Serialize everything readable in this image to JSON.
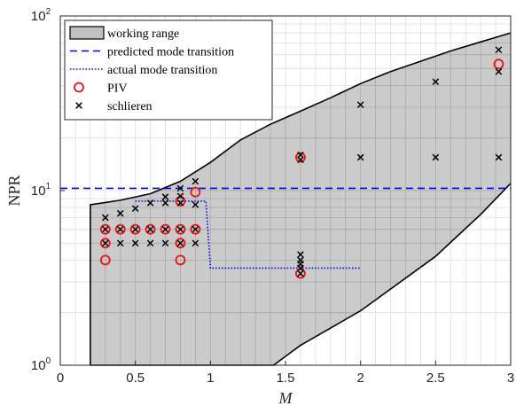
{
  "chart_data": {
    "type": "scatter",
    "xlabel": "M",
    "ylabel": "NPR",
    "xlim": [
      0,
      3
    ],
    "ylim": [
      1,
      100
    ],
    "yscale": "log",
    "grid": "major and minor",
    "legend_position": "top-left",
    "x_ticks": [
      "0",
      "0.5",
      "1",
      "1.5",
      "2",
      "2.5",
      "3"
    ],
    "y_ticks": [
      {
        "base": "10",
        "exp": "0"
      },
      {
        "base": "10",
        "exp": "1"
      },
      {
        "base": "10",
        "exp": "2"
      }
    ],
    "legend": [
      {
        "key": "working_range",
        "label": "working range"
      },
      {
        "key": "predicted",
        "label": "predicted mode transition"
      },
      {
        "key": "actual",
        "label": "actual mode transition"
      },
      {
        "key": "piv",
        "label": "PIV"
      },
      {
        "key": "schlieren",
        "label": "schlieren"
      }
    ],
    "series": [
      {
        "key": "working_range",
        "style": "filled-region",
        "fill": "#c0c0c0",
        "upper": [
          [
            0.2,
            8.3
          ],
          [
            0.4,
            8.8
          ],
          [
            0.6,
            9.6
          ],
          [
            0.8,
            11.3
          ],
          [
            1.0,
            14.5
          ],
          [
            1.2,
            19.5
          ],
          [
            1.4,
            24
          ],
          [
            1.6,
            28.5
          ],
          [
            1.8,
            34
          ],
          [
            2.0,
            41
          ],
          [
            2.2,
            48
          ],
          [
            2.4,
            55
          ],
          [
            2.6,
            63
          ],
          [
            2.8,
            71
          ],
          [
            3.0,
            80
          ]
        ],
        "lower": [
          [
            0.2,
            1.0
          ],
          [
            1.42,
            1.0
          ],
          [
            1.6,
            1.3
          ],
          [
            2.0,
            2.05
          ],
          [
            2.5,
            4.2
          ],
          [
            2.8,
            7.3
          ],
          [
            3.0,
            11.0
          ]
        ]
      },
      {
        "key": "predicted",
        "style": "dashed",
        "color": "#0000ee",
        "points": [
          [
            0,
            10.3
          ],
          [
            3,
            10.3
          ]
        ]
      },
      {
        "key": "actual",
        "style": "dotted",
        "color": "#0000ee",
        "points": [
          [
            0.5,
            8.7
          ],
          [
            0.97,
            8.7
          ],
          [
            1.0,
            3.6
          ],
          [
            2.0,
            3.6
          ]
        ]
      },
      {
        "key": "piv",
        "style": "open-circle",
        "color": "#ee1111",
        "points": [
          [
            0.3,
            4
          ],
          [
            0.3,
            5
          ],
          [
            0.3,
            6
          ],
          [
            0.4,
            6
          ],
          [
            0.5,
            6
          ],
          [
            0.6,
            6
          ],
          [
            0.7,
            6
          ],
          [
            0.8,
            4
          ],
          [
            0.8,
            5
          ],
          [
            0.8,
            6
          ],
          [
            0.8,
            8.7
          ],
          [
            0.9,
            6
          ],
          [
            0.9,
            9.8
          ],
          [
            1.6,
            3.35
          ],
          [
            1.6,
            15.5
          ],
          [
            2.92,
            53
          ]
        ]
      },
      {
        "key": "schlieren",
        "style": "cross",
        "color": "#000000",
        "points": [
          [
            0.3,
            5
          ],
          [
            0.3,
            6
          ],
          [
            0.3,
            7
          ],
          [
            0.4,
            5
          ],
          [
            0.4,
            6
          ],
          [
            0.4,
            7.4
          ],
          [
            0.5,
            5
          ],
          [
            0.5,
            6
          ],
          [
            0.5,
            7.9
          ],
          [
            0.6,
            5
          ],
          [
            0.6,
            6
          ],
          [
            0.6,
            8.5
          ],
          [
            0.7,
            5
          ],
          [
            0.7,
            6
          ],
          [
            0.7,
            8.5
          ],
          [
            0.7,
            9.2
          ],
          [
            0.8,
            5
          ],
          [
            0.8,
            6
          ],
          [
            0.8,
            8.5
          ],
          [
            0.8,
            9.3
          ],
          [
            0.8,
            10.3
          ],
          [
            0.9,
            5
          ],
          [
            0.9,
            6
          ],
          [
            0.9,
            8.3
          ],
          [
            0.9,
            11.3
          ],
          [
            1.6,
            3.35
          ],
          [
            1.6,
            3.6
          ],
          [
            1.6,
            3.8
          ],
          [
            1.6,
            4.0
          ],
          [
            1.6,
            4.3
          ],
          [
            1.6,
            15
          ],
          [
            1.6,
            16
          ],
          [
            2.0,
            15.5
          ],
          [
            2.0,
            31
          ],
          [
            2.5,
            15.5
          ],
          [
            2.5,
            42
          ],
          [
            2.92,
            15.5
          ],
          [
            2.92,
            48
          ],
          [
            2.92,
            64
          ]
        ]
      }
    ]
  }
}
